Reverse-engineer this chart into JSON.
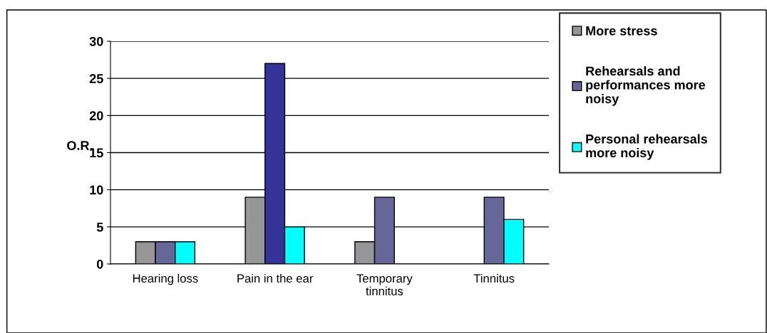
{
  "chart_data": {
    "type": "bar",
    "ylabel": "O.R.",
    "categories": [
      "Hearing loss",
      "Pain in the ear",
      "Temporary\ntinnitus",
      "Tinnitus"
    ],
    "series": [
      {
        "name": "More stress",
        "color": "#969696",
        "values": [
          3,
          9,
          3,
          null
        ]
      },
      {
        "name": "Rehearsals and\nperformances more\nnoisy",
        "color": "#666699",
        "colors": [
          "#666699",
          "#333399",
          "#666699",
          "#666699"
        ],
        "values": [
          3,
          27,
          9,
          9
        ]
      },
      {
        "name": "Personal rehearsals\nmore noisy",
        "color": "#00ffff",
        "values": [
          3,
          5,
          null,
          6
        ]
      }
    ],
    "ylim": [
      0,
      30
    ],
    "yticks": [
      0,
      5,
      10,
      15,
      20,
      25,
      30
    ],
    "grid": "y",
    "legend": "right"
  }
}
